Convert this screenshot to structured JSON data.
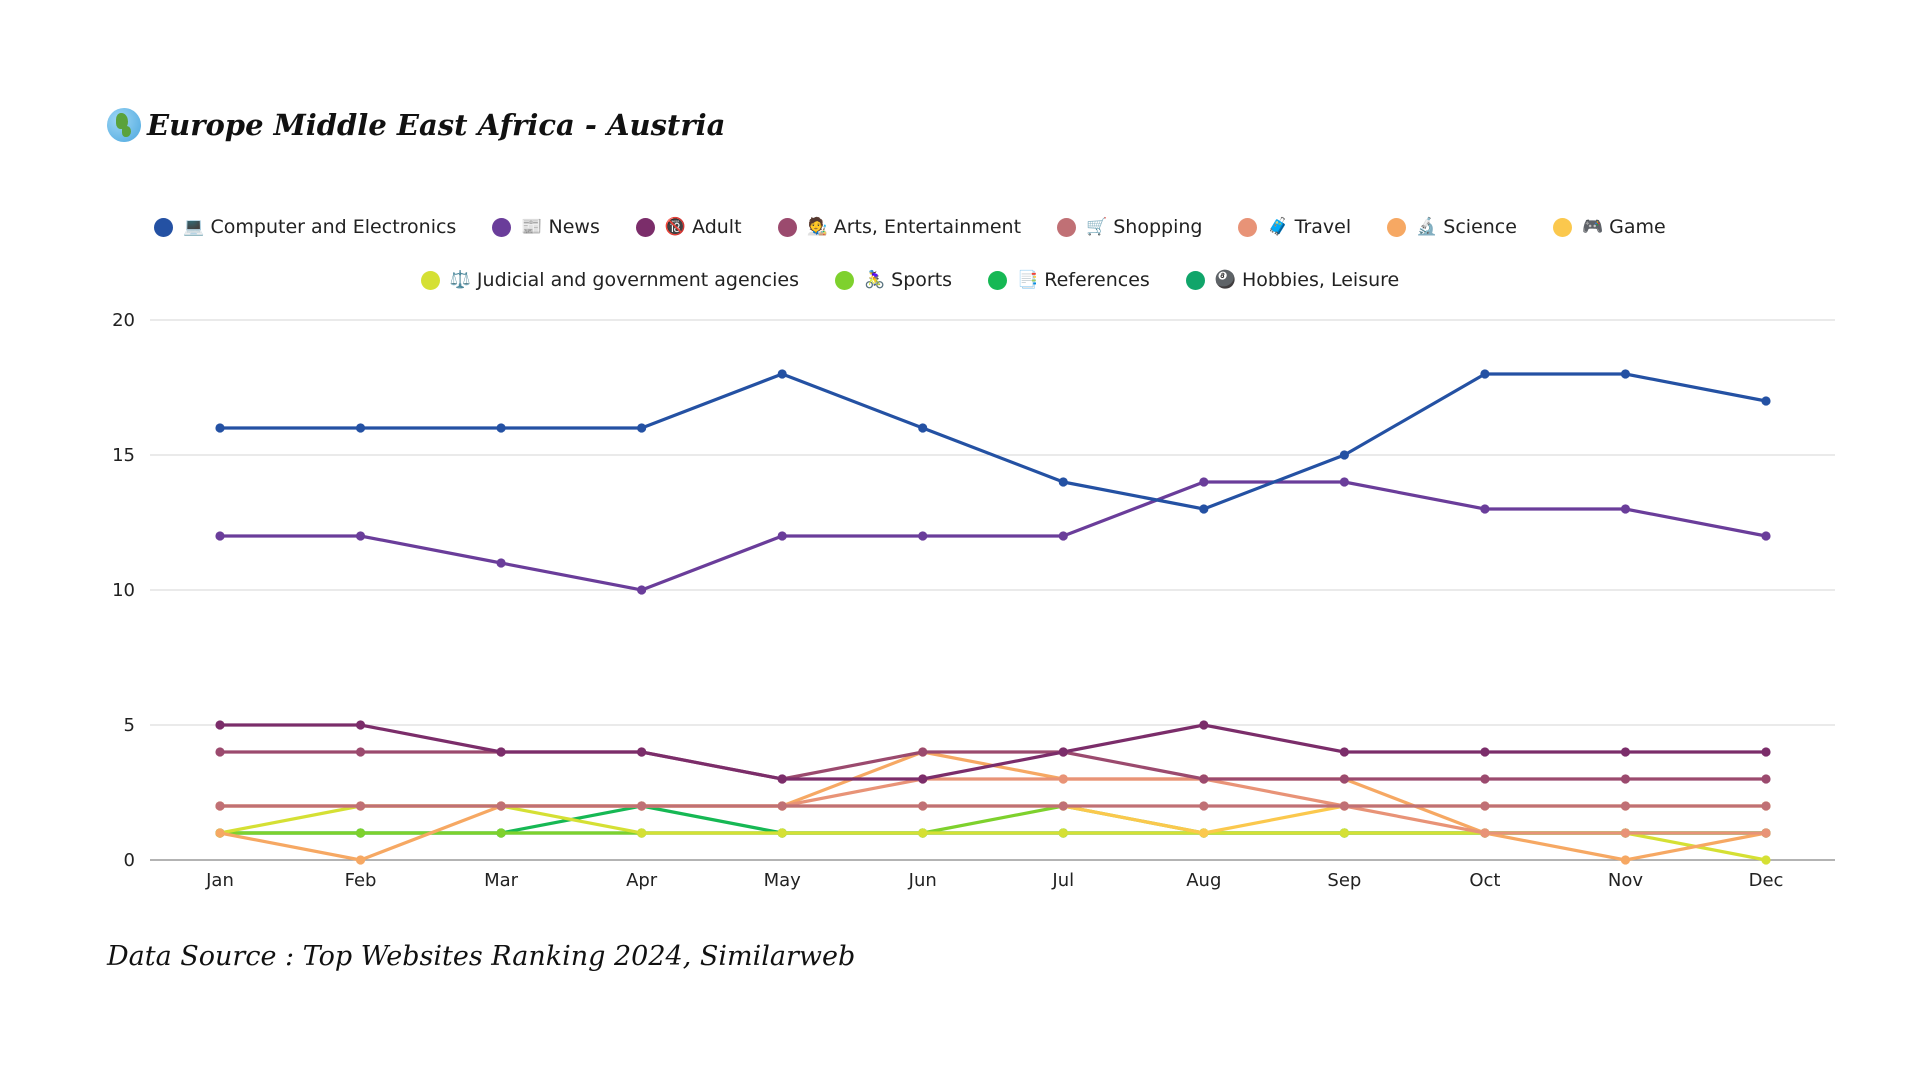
{
  "title": {
    "icon": "globe-africa-icon",
    "text": "Europe Middle East Africa - Austria"
  },
  "footer": {
    "text": "Data Source : Top Websites Ranking 2024, Similarweb"
  },
  "chart_data": {
    "type": "line",
    "title": "Europe Middle East Africa - Austria",
    "x": [
      "Jan",
      "Feb",
      "Mar",
      "Apr",
      "May",
      "Jun",
      "Jul",
      "Aug",
      "Sep",
      "Oct",
      "Nov",
      "Dec"
    ],
    "ylim": [
      0,
      20
    ],
    "yticks": [
      0,
      5,
      10,
      15,
      20
    ],
    "grid": true,
    "legend_position": "top",
    "series": [
      {
        "name": "Computer and Electronics",
        "icon": "💻",
        "color": "#2451a3",
        "values": [
          16,
          16,
          16,
          16,
          18,
          16,
          14,
          13,
          15,
          18,
          18,
          17
        ]
      },
      {
        "name": "News",
        "icon": "📰",
        "color": "#6a3d9a",
        "values": [
          12,
          12,
          11,
          10,
          12,
          12,
          12,
          14,
          14,
          13,
          13,
          12
        ]
      },
      {
        "name": "Adult",
        "icon": "🔞",
        "color": "#7b2d6a",
        "values": [
          5,
          5,
          4,
          4,
          3,
          3,
          4,
          5,
          4,
          4,
          4,
          4
        ]
      },
      {
        "name": "Arts, Entertainment",
        "icon": "🧑‍🎨",
        "color": "#9b4a6e",
        "values": [
          4,
          4,
          4,
          4,
          3,
          4,
          4,
          3,
          3,
          3,
          3,
          3
        ]
      },
      {
        "name": "Shopping",
        "icon": "🛒",
        "color": "#c07075",
        "values": [
          2,
          2,
          2,
          2,
          2,
          2,
          2,
          2,
          2,
          2,
          2,
          2
        ]
      },
      {
        "name": "Travel",
        "icon": "🧳",
        "color": "#e89377",
        "values": [
          2,
          2,
          2,
          2,
          2,
          3,
          3,
          3,
          2,
          1,
          1,
          1
        ]
      },
      {
        "name": "Science",
        "icon": "🔬",
        "color": "#f6a863",
        "values": [
          1,
          0,
          2,
          2,
          2,
          4,
          3,
          3,
          3,
          1,
          0,
          1
        ]
      },
      {
        "name": "Game",
        "icon": "🎮",
        "color": "#fbc84d",
        "values": [
          2,
          2,
          2,
          2,
          2,
          2,
          2,
          1,
          2,
          2,
          2,
          2
        ]
      },
      {
        "name": "Judicial and government agencies",
        "icon": "⚖️",
        "color": "#d5e034",
        "values": [
          1,
          2,
          2,
          1,
          1,
          1,
          1,
          1,
          1,
          1,
          1,
          0
        ]
      },
      {
        "name": "Sports",
        "icon": "🚴‍♀️",
        "color": "#7ed12d",
        "values": [
          1,
          1,
          1,
          1,
          1,
          1,
          2,
          1,
          1,
          1,
          1,
          1
        ]
      },
      {
        "name": "References",
        "icon": "📑",
        "color": "#16b854",
        "values": [
          1,
          1,
          1,
          2,
          1,
          1,
          1,
          1,
          1,
          1,
          1,
          1
        ]
      },
      {
        "name": "Hobbies, Leisure",
        "icon": "🎱",
        "color": "#10a56a",
        "values": [
          1,
          1,
          1,
          1,
          1,
          1,
          1,
          1,
          1,
          1,
          1,
          1
        ]
      }
    ]
  }
}
